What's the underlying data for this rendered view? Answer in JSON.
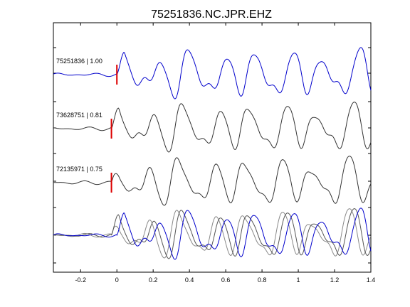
{
  "chart_data": {
    "type": "line",
    "title": "75251836.NC.JPR.EHZ",
    "xlim": [
      -0.35,
      1.4
    ],
    "x_ticks": [
      -0.2,
      0,
      0.2,
      0.4,
      0.6,
      0.8,
      1,
      1.2,
      1.4
    ],
    "x_tick_labels": [
      "-0.2",
      "0",
      "0.2",
      "0.4",
      "0.6",
      "0.8",
      "1",
      "1.2",
      "1.4"
    ],
    "grid": false,
    "traces": [
      {
        "label": "75251836 | 1.00",
        "pick_time": 0.0,
        "color": "#0000cc"
      },
      {
        "label": "73628751 | 0.81",
        "pick_time": -0.03,
        "color": "#333333"
      },
      {
        "label": "72135971 | 0.75",
        "pick_time": -0.03,
        "color": "#333333"
      }
    ],
    "overlay": {
      "colors": [
        "#0000cc",
        "#555555",
        "#888888"
      ]
    },
    "pick_color": "#dd0000"
  }
}
